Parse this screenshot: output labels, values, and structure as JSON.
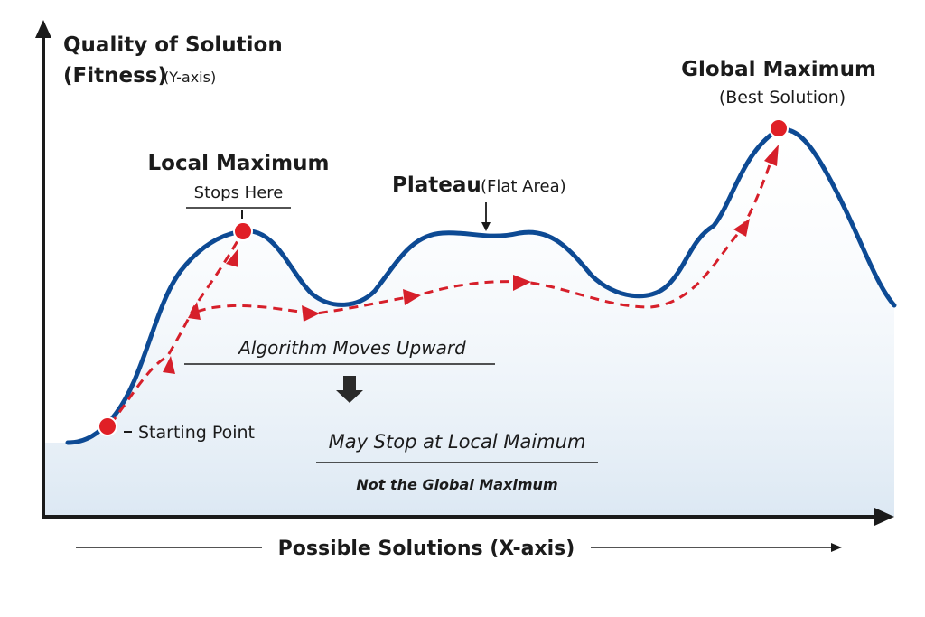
{
  "y_axis": {
    "title_line1": "Quality of Solution",
    "title_line2": "(Fitness)",
    "title_suffix": "(Y-axis)"
  },
  "x_axis": {
    "title": "Possible Solutions (X-axis)"
  },
  "labels": {
    "global_max_title": "Global Maximum",
    "global_max_sub": "(Best Solution)",
    "local_max_title": "Local Maximum",
    "local_max_sub": "Stops Here",
    "plateau_title": "Plateau",
    "plateau_sub": "(Flat Area)",
    "starting_point": "Starting Point",
    "algorithm_moves": "Algorithm Moves Upward",
    "may_stop": "May Stop at Local Maimum",
    "not_global": "Not the Global Maximum"
  },
  "colors": {
    "curve": "#0d4a94",
    "path": "#d61f2a",
    "point": "#e01f26",
    "fill": "#dce8f3",
    "axis": "#1a1a1a"
  }
}
